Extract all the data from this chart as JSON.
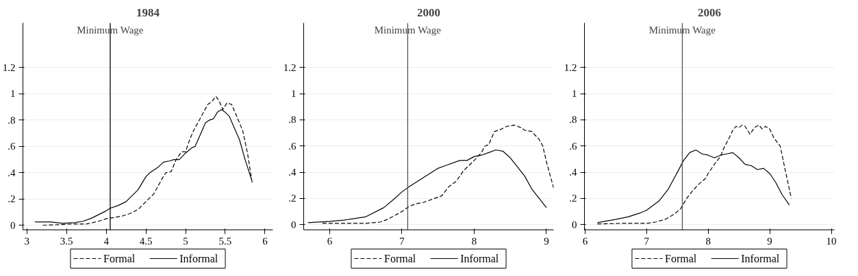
{
  "chart_data": [
    {
      "type": "line",
      "title": "1984",
      "xlim": [
        2.95,
        6.1
      ],
      "ylim": [
        -0.035,
        1.54
      ],
      "xticks": [
        3,
        3.5,
        4,
        4.5,
        5,
        5.5,
        6
      ],
      "yticks": [
        0,
        {
          "value": 0.2,
          "label": ".2"
        },
        {
          "value": 0.4,
          "label": ".4"
        },
        {
          "value": 0.6,
          "label": ".6"
        },
        {
          "value": 0.8,
          "label": ".8"
        },
        1,
        1.2
      ],
      "grid": "y",
      "legend": "bottom",
      "ref_lines": [
        {
          "axis": "x",
          "value": 4.05,
          "label": "Minimum Wage",
          "color": "#000000"
        }
      ],
      "series": [
        {
          "name": "Formal",
          "color": "#000000",
          "line_style": "dashed",
          "x": [
            3.2,
            3.4,
            3.6,
            3.75,
            3.9,
            4.0,
            4.1,
            4.2,
            4.3,
            4.4,
            4.5,
            4.6,
            4.7,
            4.75,
            4.82,
            4.88,
            4.95,
            5.0,
            5.05,
            5.1,
            5.2,
            5.28,
            5.33,
            5.38,
            5.42,
            5.47,
            5.52,
            5.58,
            5.65,
            5.72,
            5.78,
            5.84
          ],
          "values": [
            0,
            0.005,
            0.01,
            0.01,
            0.03,
            0.05,
            0.06,
            0.07,
            0.09,
            0.12,
            0.18,
            0.24,
            0.35,
            0.4,
            0.41,
            0.5,
            0.56,
            0.56,
            0.65,
            0.72,
            0.83,
            0.92,
            0.94,
            0.98,
            0.95,
            0.88,
            0.93,
            0.92,
            0.82,
            0.72,
            0.55,
            0.32
          ]
        },
        {
          "name": "Informal",
          "color": "#000000",
          "line_style": "solid",
          "x": [
            3.1,
            3.3,
            3.45,
            3.6,
            3.7,
            3.8,
            3.9,
            4.0,
            4.05,
            4.15,
            4.25,
            4.3,
            4.4,
            4.5,
            4.55,
            4.65,
            4.72,
            4.8,
            4.85,
            4.92,
            5.0,
            5.08,
            5.12,
            5.2,
            5.25,
            5.3,
            5.35,
            5.4,
            5.45,
            5.5,
            5.55,
            5.6,
            5.68,
            5.75,
            5.83
          ],
          "values": [
            0.025,
            0.025,
            0.015,
            0.02,
            0.03,
            0.05,
            0.08,
            0.11,
            0.13,
            0.15,
            0.18,
            0.21,
            0.27,
            0.37,
            0.4,
            0.44,
            0.48,
            0.49,
            0.5,
            0.5,
            0.55,
            0.59,
            0.6,
            0.71,
            0.78,
            0.8,
            0.81,
            0.86,
            0.88,
            0.86,
            0.83,
            0.76,
            0.65,
            0.5,
            0.35
          ]
        }
      ]
    },
    {
      "type": "line",
      "title": "2000",
      "xlim": [
        5.64,
        9.1
      ],
      "ylim": [
        -0.04,
        1.54
      ],
      "xticks": [
        6,
        7,
        8,
        9
      ],
      "yticks": [
        0,
        {
          "value": 0.2,
          "label": ".2"
        },
        {
          "value": 0.4,
          "label": ".4"
        },
        {
          "value": 0.6,
          "label": ".6"
        },
        {
          "value": 0.8,
          "label": ".8"
        },
        1,
        1.2
      ],
      "grid": "y",
      "legend": "bottom",
      "ref_lines": [
        {
          "axis": "x",
          "value": 7.08,
          "label": "Minimum Wage",
          "color": "#555555"
        }
      ],
      "series": [
        {
          "name": "Formal",
          "color": "#000000",
          "line_style": "dashed",
          "x": [
            5.9,
            6.2,
            6.5,
            6.7,
            6.8,
            6.9,
            7.0,
            7.1,
            7.2,
            7.3,
            7.4,
            7.55,
            7.65,
            7.75,
            7.85,
            8.0,
            8.1,
            8.15,
            8.2,
            8.28,
            8.38,
            8.45,
            8.55,
            8.65,
            8.7,
            8.8,
            8.9,
            8.95,
            9.0,
            9.05,
            9.1
          ],
          "values": [
            0.01,
            0.01,
            0.01,
            0.02,
            0.04,
            0.07,
            0.1,
            0.14,
            0.16,
            0.17,
            0.19,
            0.22,
            0.29,
            0.33,
            0.41,
            0.49,
            0.55,
            0.6,
            0.61,
            0.71,
            0.73,
            0.75,
            0.76,
            0.74,
            0.72,
            0.71,
            0.65,
            0.6,
            0.48,
            0.38,
            0.28
          ]
        },
        {
          "name": "Informal",
          "color": "#000000",
          "line_style": "solid",
          "x": [
            5.7,
            6.0,
            6.2,
            6.5,
            6.75,
            6.9,
            7.0,
            7.1,
            7.3,
            7.5,
            7.6,
            7.8,
            7.9,
            8.0,
            8.1,
            8.2,
            8.3,
            8.4,
            8.5,
            8.6,
            8.7,
            8.8,
            8.9,
            9.0
          ],
          "values": [
            0.015,
            0.025,
            0.035,
            0.06,
            0.13,
            0.2,
            0.25,
            0.29,
            0.36,
            0.43,
            0.45,
            0.49,
            0.49,
            0.52,
            0.53,
            0.55,
            0.57,
            0.56,
            0.51,
            0.44,
            0.37,
            0.27,
            0.2,
            0.13
          ]
        }
      ]
    },
    {
      "type": "line",
      "title": "2006",
      "xlim": [
        5.99,
        10.05
      ],
      "ylim": [
        -0.04,
        1.54
      ],
      "xticks": [
        6,
        7,
        8,
        9,
        10
      ],
      "yticks": [
        0,
        {
          "value": 0.2,
          "label": ".2"
        },
        {
          "value": 0.4,
          "label": ".4"
        },
        {
          "value": 0.6,
          "label": ".6"
        },
        {
          "value": 0.8,
          "label": ".8"
        },
        1,
        1.2
      ],
      "grid": "y",
      "legend": "bottom",
      "ref_lines": [
        {
          "axis": "x",
          "value": 7.58,
          "label": "Minimum Wage",
          "color": "#555555"
        }
      ],
      "series": [
        {
          "name": "Formal",
          "color": "#000000",
          "line_style": "dashed",
          "x": [
            6.2,
            6.6,
            7.0,
            7.15,
            7.3,
            7.45,
            7.55,
            7.65,
            7.75,
            7.85,
            7.95,
            8.0,
            8.1,
            8.2,
            8.25,
            8.35,
            8.4,
            8.45,
            8.5,
            8.55,
            8.6,
            8.68,
            8.75,
            8.82,
            8.88,
            8.93,
            9.0,
            9.07,
            9.17,
            9.25,
            9.35
          ],
          "values": [
            0.005,
            0.01,
            0.01,
            0.02,
            0.04,
            0.08,
            0.12,
            0.2,
            0.26,
            0.31,
            0.35,
            0.39,
            0.46,
            0.52,
            0.58,
            0.67,
            0.72,
            0.75,
            0.74,
            0.76,
            0.75,
            0.69,
            0.74,
            0.76,
            0.73,
            0.75,
            0.73,
            0.66,
            0.6,
            0.42,
            0.2
          ]
        },
        {
          "name": "Informal",
          "color": "#000000",
          "line_style": "solid",
          "x": [
            6.2,
            6.5,
            6.7,
            6.9,
            7.0,
            7.2,
            7.35,
            7.5,
            7.6,
            7.7,
            7.8,
            7.9,
            8.0,
            8.1,
            8.2,
            8.3,
            8.4,
            8.5,
            8.6,
            8.7,
            8.8,
            8.9,
            9.0,
            9.1,
            9.2,
            9.32
          ],
          "values": [
            0.015,
            0.04,
            0.06,
            0.09,
            0.11,
            0.18,
            0.27,
            0.4,
            0.49,
            0.55,
            0.57,
            0.54,
            0.53,
            0.51,
            0.53,
            0.54,
            0.55,
            0.51,
            0.46,
            0.45,
            0.42,
            0.43,
            0.39,
            0.32,
            0.23,
            0.15
          ]
        }
      ]
    }
  ]
}
